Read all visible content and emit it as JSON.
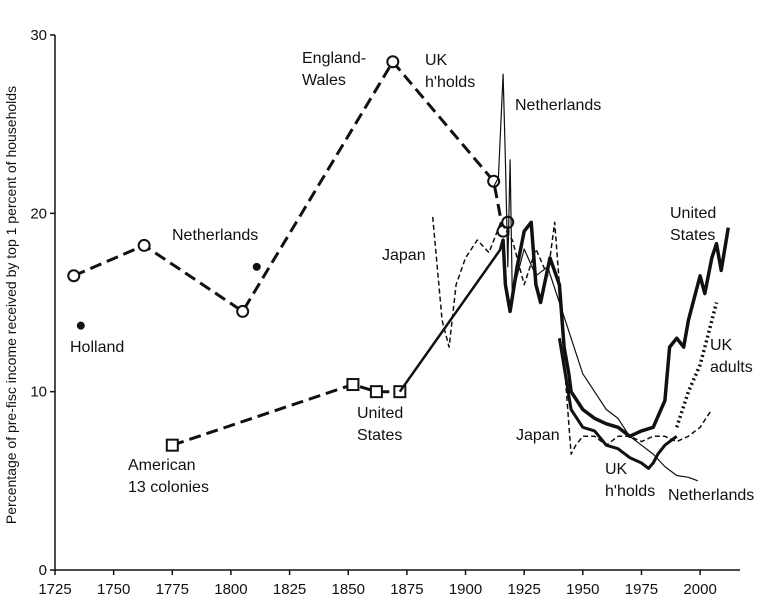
{
  "chart_data": {
    "type": "line",
    "y_label": "Percentage of pre-fisc income received by top 1 percent of households",
    "xlim": [
      1725,
      2017
    ],
    "ylim": [
      0,
      30
    ],
    "xticks": [
      1725,
      1750,
      1775,
      1800,
      1825,
      1850,
      1875,
      1900,
      1925,
      1950,
      1975,
      2000
    ],
    "yticks": [
      0,
      10,
      20,
      30
    ],
    "series": [
      {
        "color": "#111",
        "dash": "dashed",
        "width": 3,
        "marker": "circle",
        "x": [
          1733,
          1763,
          1805,
          1869,
          1912,
          1916,
          1918
        ],
        "values": [
          16.5,
          18.2,
          14.5,
          28.5,
          21.8,
          19.0,
          19.5
        ]
      },
      {
        "color": "#111",
        "dash": "dashed",
        "width": 3,
        "marker": "square",
        "x": [
          1775,
          1852,
          1862,
          1872
        ],
        "values": [
          7.0,
          10.4,
          10.0,
          10.0
        ]
      },
      {
        "color": "#111",
        "dash": "solid",
        "width": 2.5,
        "marker": "none",
        "x": [
          1872,
          1915
        ],
        "values": [
          10.0,
          18.0
        ]
      },
      {
        "color": "#111",
        "dash": "solid",
        "width": 3.5,
        "marker": "none",
        "x": [
          1915,
          1916,
          1917,
          1919,
          1922,
          1925,
          1928,
          1930,
          1932,
          1936,
          1940,
          1942,
          1944,
          1945,
          1950,
          1955,
          1960,
          1965,
          1970,
          1975,
          1980,
          1985,
          1987,
          1990,
          1993,
          1995,
          2000,
          2002,
          2005,
          2007,
          2009,
          2012
        ],
        "values": [
          18,
          18.5,
          16,
          14.5,
          17,
          19,
          19.5,
          16,
          15,
          17.5,
          16,
          12.5,
          11,
          10,
          9,
          8.5,
          8.2,
          8.0,
          7.5,
          7.8,
          8.0,
          9.5,
          12.5,
          13,
          12.5,
          14,
          16.5,
          15.5,
          17.5,
          18.3,
          16.8,
          19.2
        ]
      },
      {
        "color": "#111",
        "dash": "solid",
        "width": 1.2,
        "marker": "none",
        "x": [
          1912,
          1914,
          1916,
          1917,
          1918,
          1919,
          1920,
          1921,
          1925,
          1930,
          1935,
          1940,
          1945,
          1950,
          1955,
          1960,
          1965,
          1970,
          1975,
          1980,
          1985,
          1990,
          1995,
          1999
        ],
        "values": [
          21.5,
          22,
          27.8,
          23,
          17,
          23,
          15,
          16,
          18,
          16.5,
          17,
          15,
          13,
          11,
          10,
          9,
          8.5,
          7.5,
          7,
          6.5,
          5.8,
          5.3,
          5.2,
          5.0
        ]
      },
      {
        "color": "#111",
        "dash": "dashed-thin",
        "width": 1.5,
        "marker": "none",
        "x": [
          1886,
          1890,
          1893,
          1896,
          1900,
          1905,
          1910,
          1915,
          1920,
          1925,
          1930,
          1935,
          1938,
          1940,
          1943,
          1945,
          1947,
          1950,
          1955,
          1960,
          1965,
          1970,
          1975,
          1980,
          1985,
          1990,
          1995,
          2000,
          2005
        ],
        "values": [
          19.8,
          14,
          12.5,
          16,
          17.5,
          18.5,
          17.8,
          19.5,
          18.5,
          16,
          18,
          16.5,
          19.5,
          16,
          10,
          6.5,
          7.0,
          7.5,
          7.5,
          7.0,
          7.5,
          7.5,
          7.2,
          7.5,
          7.5,
          7.2,
          7.5,
          8.0,
          9.0
        ]
      },
      {
        "color": "#111",
        "dash": "solid",
        "width": 3,
        "marker": "none",
        "x": [
          1940,
          1945,
          1950,
          1955,
          1960,
          1965,
          1970,
          1975,
          1978,
          1980,
          1982,
          1985,
          1990
        ],
        "values": [
          13,
          9,
          8,
          7.8,
          7.0,
          6.8,
          6.3,
          6.0,
          5.7,
          6.0,
          6.5,
          7.0,
          7.5
        ]
      },
      {
        "color": "#111",
        "dash": "dotted",
        "width": 3.5,
        "marker": "none",
        "x": [
          1990,
          1995,
          2000,
          2003,
          2007
        ],
        "values": [
          8,
          10,
          11.5,
          13,
          15
        ]
      },
      {
        "color": "#111",
        "dash": "none",
        "width": 0,
        "marker": "dot",
        "x": [
          1736,
          1811
        ],
        "values": [
          13.7,
          17.0
        ]
      }
    ],
    "annotations": [
      [
        "Holland"
      ],
      [
        "Netherlands"
      ],
      [
        "England-",
        "Wales"
      ],
      [
        "UK",
        "h'holds"
      ],
      [
        "Netherlands"
      ],
      [
        "Japan"
      ],
      [
        "United",
        "States"
      ],
      [
        "UK",
        "adults"
      ],
      [
        "United",
        "States"
      ],
      [
        "Japan"
      ],
      [
        "American",
        "13 colonies"
      ],
      [
        "UK",
        "h'holds"
      ],
      [
        "Netherlands"
      ]
    ]
  }
}
